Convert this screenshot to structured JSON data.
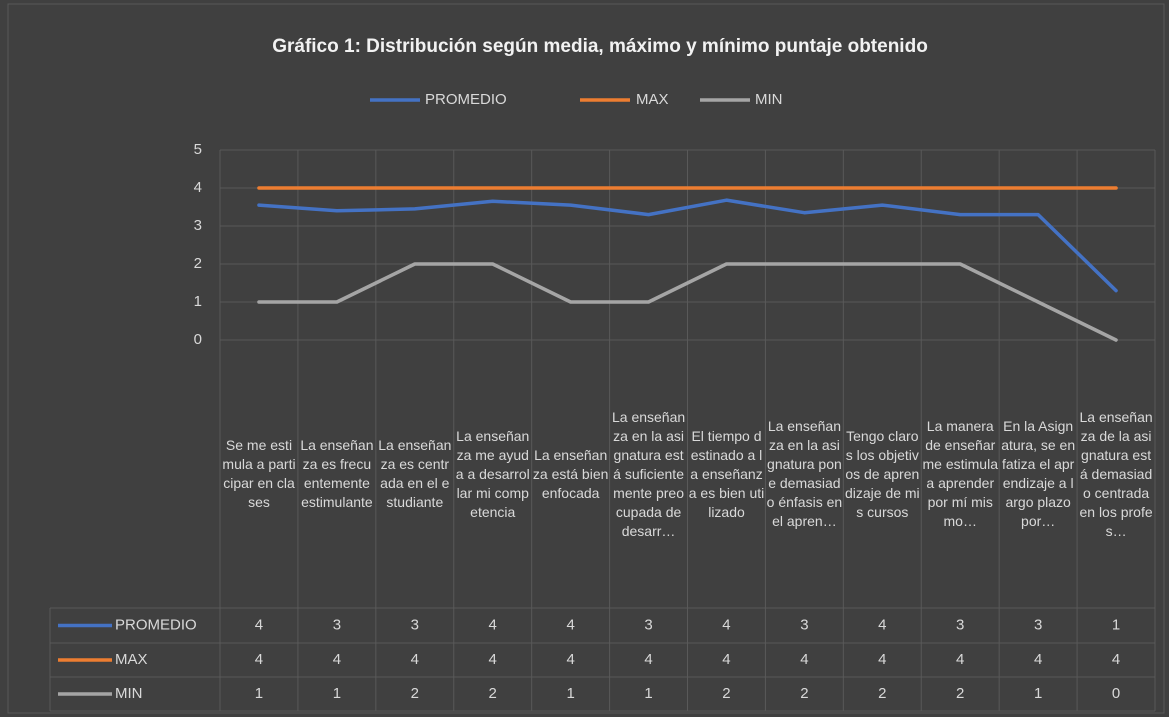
{
  "chart_data": {
    "type": "line",
    "title": "Gráfico 1: Distribución según media, máximo y mínimo puntaje obtenido",
    "categories": [
      "Se me estimula a participar en clases",
      "La enseñanza es frecuentemente estimulante",
      "La enseñanza es centrada en el estudiante",
      "La enseñanza me ayuda a desarrollar mi competencia",
      "La enseñanza está bien enfocada",
      "La enseñanza en la asignatura está suficientemente preocupada de desarr…",
      "El tiempo destinado a la enseñanza es bien utilizado",
      "La enseñanza en la asignatura pone demasiado énfasis en el apren…",
      "Tengo claros los objetivos de aprendizaje de mis cursos",
      "La manera de enseñar me estimula a aprender por mí mismo…",
      "En la Asignatura, se enfatiza el aprendizaje a largo plazo por…",
      "La enseñanza de la asignatura está demasiado centrada en los profes…"
    ],
    "series": [
      {
        "name": "PROMEDIO",
        "color": "#4472c4",
        "values": [
          3.55,
          3.4,
          3.45,
          3.65,
          3.55,
          3.3,
          3.68,
          3.35,
          3.55,
          3.3,
          3.3,
          1.3
        ],
        "value_labels": [
          "4",
          "3",
          "3",
          "4",
          "4",
          "3",
          "4",
          "3",
          "4",
          "3",
          "3",
          "1"
        ]
      },
      {
        "name": "MAX",
        "color": "#ed7d31",
        "values": [
          4,
          4,
          4,
          4,
          4,
          4,
          4,
          4,
          4,
          4,
          4,
          4
        ]
      },
      {
        "name": "MIN",
        "color": "#a5a5a5",
        "values": [
          1,
          1,
          2,
          2,
          1,
          1,
          2,
          2,
          2,
          2,
          1,
          0
        ]
      }
    ],
    "ylim": [
      0,
      5
    ],
    "yticks": [
      0,
      1,
      2,
      3,
      4,
      5
    ],
    "grid": true,
    "legend": "top"
  }
}
